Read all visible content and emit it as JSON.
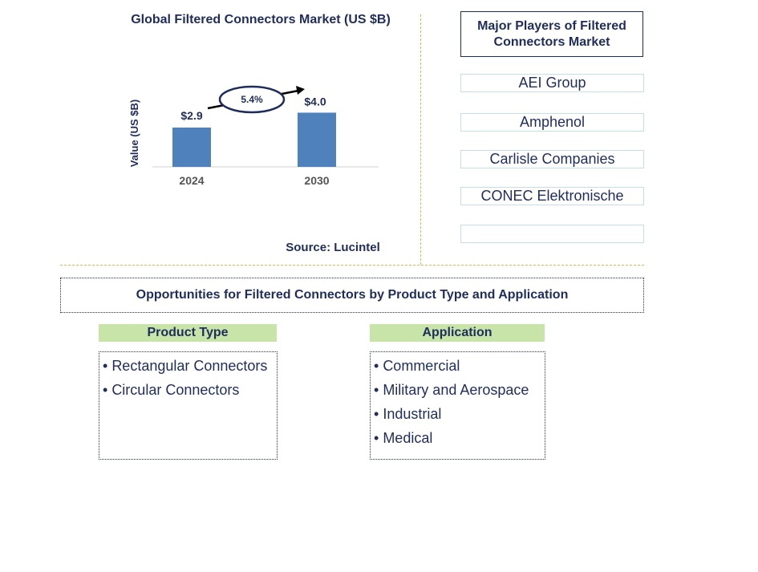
{
  "chart_data": {
    "type": "bar",
    "title": "Global Filtered Connectors Market (US $B)",
    "ylabel": "Value (US $B)",
    "categories": [
      "2024",
      "2030"
    ],
    "values": [
      2.9,
      4.0
    ],
    "value_labels": [
      "$2.9",
      "$4.0"
    ],
    "cagr_label": "5.4%",
    "ylim": [
      0,
      4.5
    ],
    "bar_color": "#4f81bd"
  },
  "source": "Source: Lucintel",
  "players": {
    "title": "Major Players of Filtered Connectors Market",
    "items": [
      "AEI Group",
      "Amphenol",
      "Carlisle Companies",
      "CONEC Elektronische",
      ""
    ]
  },
  "opportunities": {
    "title": "Opportunities for Filtered Connectors by Product Type and Application",
    "product_type": {
      "header": "Product Type",
      "items": [
        "Rectangular Connectors",
        "Circular Connectors"
      ]
    },
    "application": {
      "header": "Application",
      "items": [
        "Commercial",
        "Military and Aerospace",
        "Industrial",
        "Medical"
      ]
    }
  },
  "colors": {
    "text": "#1f2d5c",
    "divider": "#e2b44c",
    "category_header": "#c9e4a8"
  }
}
